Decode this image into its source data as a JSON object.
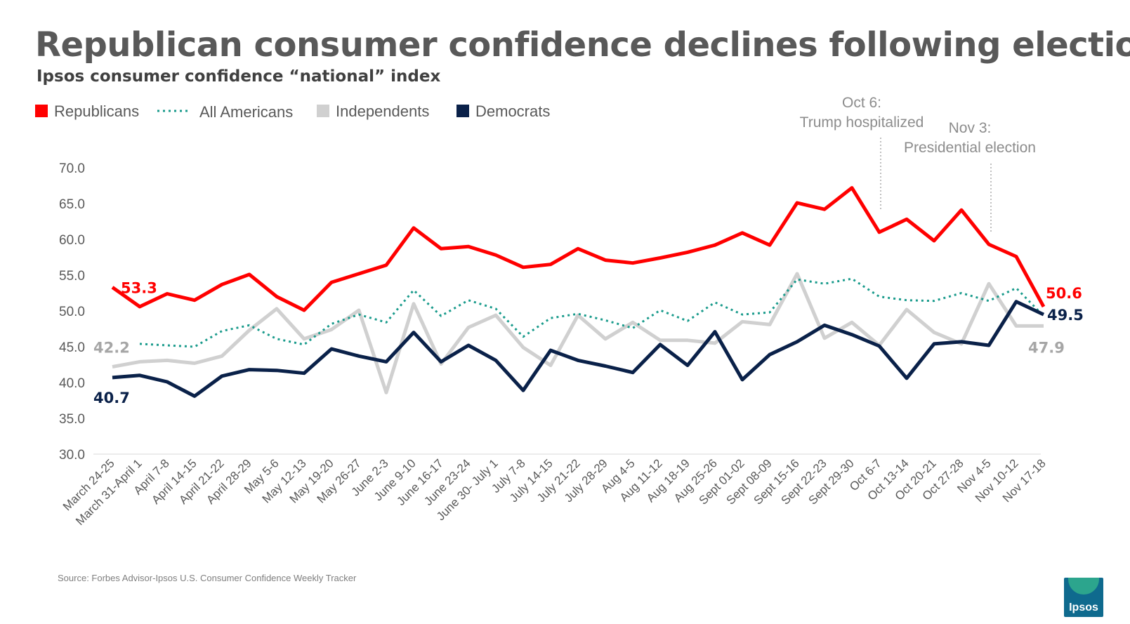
{
  "title": "Republican consumer confidence declines following election",
  "subtitle": "Ipsos consumer confidence “national” index",
  "source": "Source: Forbes Advisor-Ipsos U.S. Consumer Confidence Weekly Tracker",
  "logo_text": "Ipsos",
  "chart_data": {
    "type": "line",
    "title": "Republican consumer confidence declines following election",
    "subtitle": "Ipsos consumer confidence “national” index",
    "xlabel": "",
    "ylabel": "",
    "ylim": [
      30,
      70
    ],
    "yticks": [
      30,
      35,
      40,
      45,
      50,
      55,
      60,
      65,
      70
    ],
    "ytick_labels": [
      "30.0",
      "35.0",
      "40.0",
      "45.0",
      "50.0",
      "55.0",
      "60.0",
      "65.0",
      "70.0"
    ],
    "grid": false,
    "legend_position": "top-left",
    "categories": [
      "March 24-25",
      "March 31-April 1",
      "April 7-8",
      "April 14-15",
      "April 21-22",
      "April 28-29",
      "May 5-6",
      "May 12-13",
      "May 19-20",
      "May 26-27",
      "June 2-3",
      "June 9-10",
      "June 16-17",
      "June 23-24",
      "June 30- July 1",
      "July 7-8",
      "July 14-15",
      "July 21-22",
      "July 28-29",
      "Aug 4-5",
      "Aug 11-12",
      "Aug 18-19",
      "Aug 25-26",
      "Sept 01-02",
      "Sept 08-09",
      "Sept 15-16",
      "Sept 22-23",
      "Sept 29-30",
      "Oct 6-7",
      "Oct 13-14",
      "Oct 20-21",
      "Oct 27-28",
      "Nov 4-5",
      "Nov 10-12",
      "Nov 17-18"
    ],
    "series": [
      {
        "name": "Republicans",
        "color": "#ff0000",
        "style": "solid",
        "values": [
          53.3,
          50.6,
          52.4,
          51.5,
          53.7,
          55.1,
          52.0,
          50.1,
          54.0,
          55.2,
          56.4,
          61.6,
          58.7,
          59.0,
          57.8,
          56.1,
          56.5,
          58.7,
          57.1,
          56.7,
          57.4,
          58.2,
          59.2,
          60.9,
          59.2,
          65.1,
          64.2,
          67.2,
          61.0,
          62.8,
          59.8,
          64.1,
          59.3,
          57.6,
          50.6
        ]
      },
      {
        "name": "All Americans",
        "color": "#1a9b8c",
        "style": "dotted",
        "values": [
          null,
          45.4,
          45.2,
          45.0,
          47.2,
          48.0,
          46.1,
          45.3,
          48.2,
          49.5,
          48.4,
          52.9,
          49.3,
          51.5,
          50.3,
          46.4,
          49.0,
          49.6,
          48.7,
          47.6,
          50.1,
          48.6,
          51.2,
          49.5,
          49.8,
          54.4,
          53.8,
          54.5,
          52.0,
          51.5,
          51.4,
          52.5,
          51.4,
          53.2,
          49.3
        ]
      },
      {
        "name": "Independents",
        "color": "#d0d0d0",
        "style": "solid",
        "values": [
          42.2,
          42.9,
          43.1,
          42.7,
          43.7,
          47.3,
          50.3,
          46.1,
          47.4,
          50.1,
          38.6,
          51.0,
          42.6,
          47.7,
          49.4,
          44.9,
          42.4,
          49.4,
          46.1,
          48.4,
          45.9,
          45.9,
          45.5,
          48.5,
          48.1,
          55.2,
          46.2,
          48.4,
          45.2,
          50.2,
          47.0,
          45.4,
          53.8,
          47.9,
          47.9
        ]
      },
      {
        "name": "Democrats",
        "color": "#0a2149",
        "style": "solid",
        "values": [
          40.7,
          41.0,
          40.1,
          38.1,
          40.9,
          41.8,
          41.7,
          41.3,
          44.7,
          43.7,
          42.9,
          47.0,
          42.9,
          45.2,
          43.1,
          38.9,
          44.5,
          43.1,
          42.3,
          41.4,
          45.3,
          42.4,
          47.1,
          40.4,
          43.9,
          45.7,
          48.0,
          46.7,
          45.1,
          40.6,
          45.4,
          45.7,
          45.2,
          51.3,
          49.5
        ]
      }
    ],
    "data_labels": [
      {
        "text": "53.3",
        "series": "Republicans",
        "index": 0,
        "color": "#ff0000"
      },
      {
        "text": "42.2",
        "series": "Independents",
        "index": 0,
        "color": "#a6a6a6"
      },
      {
        "text": "40.7",
        "series": "Democrats",
        "index": 0,
        "color": "#0a2149"
      },
      {
        "text": "50.6",
        "series": "Republicans",
        "index": 34,
        "color": "#ff0000"
      },
      {
        "text": "49.5",
        "series": "Democrats",
        "index": 34,
        "color": "#0a2149"
      },
      {
        "text": "47.9",
        "series": "Independents",
        "index": 34,
        "color": "#a6a6a6"
      }
    ],
    "annotations": [
      {
        "lines": [
          "Oct 6:",
          "Trump hospitalized"
        ],
        "category_index": 28
      },
      {
        "lines": [
          "Nov 3:",
          "Presidential election"
        ],
        "category_index": 32
      }
    ]
  }
}
